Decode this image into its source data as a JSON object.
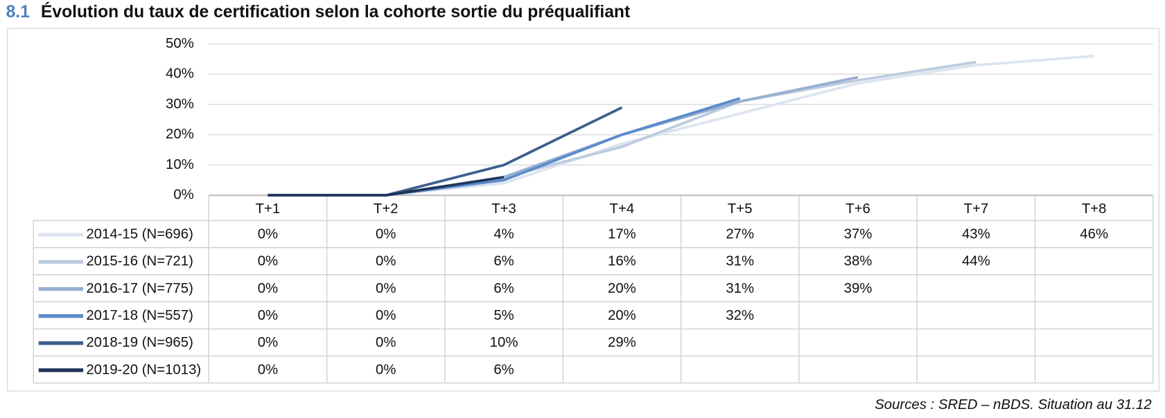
{
  "chart_data": {
    "type": "line",
    "number": "8.1",
    "title": "Évolution du taux de certification selon la cohorte sortie du préqualifiant",
    "source": "Sources : SRED – nBDS. Situation au 31.12",
    "categories": [
      "T+1",
      "T+2",
      "T+3",
      "T+4",
      "T+5",
      "T+6",
      "T+7",
      "T+8"
    ],
    "ylim": [
      0,
      50
    ],
    "yticks": [
      {
        "value": 0,
        "label": "0%"
      },
      {
        "value": 10,
        "label": "10%"
      },
      {
        "value": 20,
        "label": "20%"
      },
      {
        "value": 30,
        "label": "30%"
      },
      {
        "value": 40,
        "label": "40%"
      },
      {
        "value": 50,
        "label": "50%"
      }
    ],
    "grid": true,
    "series": [
      {
        "name": "2014-15 (N=696)",
        "color": "#dce4f0",
        "values": [
          0,
          0,
          4,
          17,
          27,
          37,
          43,
          46
        ],
        "value_labels": [
          "0%",
          "0%",
          "4%",
          "17%",
          "27%",
          "37%",
          "43%",
          "46%"
        ]
      },
      {
        "name": "2015-16 (N=721)",
        "color": "#bccbe0",
        "values": [
          0,
          0,
          6,
          16,
          31,
          38,
          44,
          null
        ],
        "value_labels": [
          "0%",
          "0%",
          "6%",
          "16%",
          "31%",
          "38%",
          "44%",
          null
        ]
      },
      {
        "name": "2016-17 (N=775)",
        "color": "#97afd0",
        "values": [
          0,
          0,
          6,
          20,
          31,
          39,
          null,
          null
        ],
        "value_labels": [
          "0%",
          "0%",
          "6%",
          "20%",
          "31%",
          "39%",
          null,
          null
        ]
      },
      {
        "name": "2017-18 (N=557)",
        "color": "#5a8bcb",
        "values": [
          0,
          0,
          5,
          20,
          32,
          null,
          null,
          null
        ],
        "value_labels": [
          "0%",
          "0%",
          "5%",
          "20%",
          "32%",
          null,
          null,
          null
        ]
      },
      {
        "name": "2018-19 (N=965)",
        "color": "#3e5f8d",
        "values": [
          0,
          0,
          10,
          29,
          null,
          null,
          null,
          null
        ],
        "value_labels": [
          "0%",
          "0%",
          "10%",
          "29%",
          null,
          null,
          null,
          null
        ]
      },
      {
        "name": "2019-20 (N=1013)",
        "color": "#1f3457",
        "values": [
          0,
          0,
          6,
          null,
          null,
          null,
          null,
          null
        ],
        "value_labels": [
          "0%",
          "0%",
          "6%",
          null,
          null,
          null,
          null,
          null
        ]
      }
    ]
  }
}
